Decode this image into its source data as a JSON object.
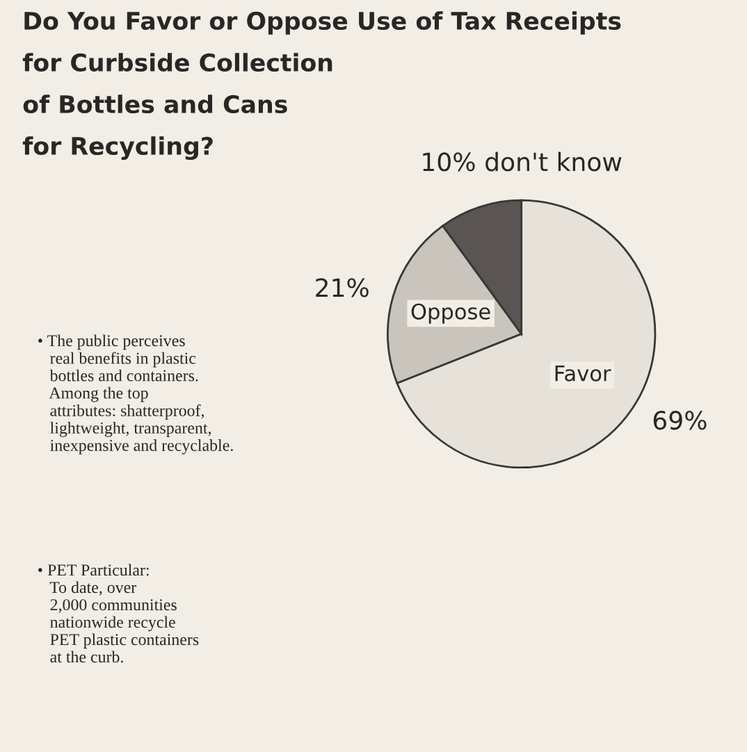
{
  "chart_data": {
    "type": "pie",
    "title": "Do You Favor or Oppose Use of Tax Receipts\nfor Curbside Collection\nof Bottles and Cans\nfor Recycling?",
    "categories": [
      "Favor",
      "Oppose",
      "don't know"
    ],
    "values": [
      69,
      21,
      10
    ],
    "colors": [
      "#e6e2da",
      "#c9c5bd",
      "#5a5552"
    ],
    "value_labels": [
      "69%",
      "21%",
      "10%"
    ],
    "annotations": [
      "• The public perceives\n   real benefits in plastic\n   bottles and containers.\n   Among the top\n   attributes: shatterproof,\n   lightweight, transparent,\n   inexpensive and recyclable.",
      "• PET Particular:\n   To date, over\n   2,000 communities\n   nationwide recycle\n   PET plastic containers\n   at the curb."
    ]
  }
}
